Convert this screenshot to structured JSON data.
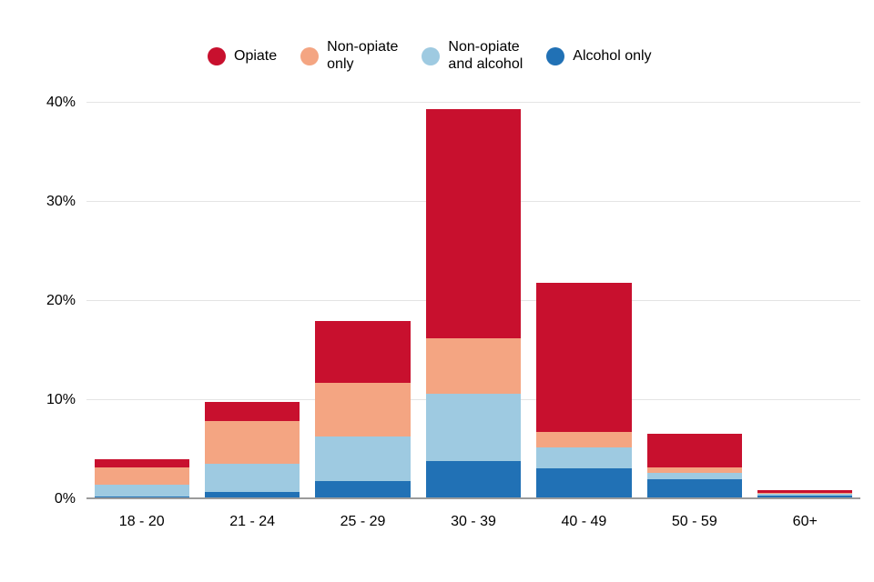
{
  "legend": {
    "items": [
      {
        "label": "Opiate",
        "color": "#c8102e"
      },
      {
        "label": "Non-opiate\nonly",
        "color": "#f4a582"
      },
      {
        "label": "Non-opiate\nand alcohol",
        "color": "#9ecae1"
      },
      {
        "label": "Alcohol only",
        "color": "#2171b5"
      }
    ]
  },
  "chart_data": {
    "type": "bar",
    "stacked": true,
    "title": "",
    "xlabel": "",
    "ylabel": "",
    "categories": [
      "18 - 20",
      "21 - 24",
      "25 - 29",
      "30 - 39",
      "40 - 49",
      "50 - 59",
      "60+"
    ],
    "series": [
      {
        "name": "Alcohol only",
        "color": "#2171b5",
        "values": [
          0.3,
          0.7,
          1.8,
          3.9,
          3.1,
          2.0,
          0.4
        ]
      },
      {
        "name": "Non-opiate and alcohol",
        "color": "#9ecae1",
        "values": [
          1.2,
          2.9,
          4.5,
          6.7,
          2.1,
          0.7,
          0.15
        ]
      },
      {
        "name": "Non-opiate only",
        "color": "#f4a582",
        "values": [
          1.7,
          4.3,
          5.4,
          5.6,
          1.6,
          0.5,
          0.1
        ]
      },
      {
        "name": "Opiate",
        "color": "#c8102e",
        "values": [
          0.8,
          1.9,
          6.3,
          23.2,
          15.0,
          3.4,
          0.3
        ]
      }
    ],
    "stack_order_bottom_to_top": [
      "Alcohol only",
      "Non-opiate and alcohol",
      "Non-opiate only",
      "Opiate"
    ],
    "ylim": [
      0,
      40
    ],
    "yticks": [
      0,
      10,
      20,
      30,
      40
    ],
    "ytick_labels": [
      "0%",
      "10%",
      "20%",
      "30%",
      "40%"
    ],
    "grid": "horizontal",
    "legend_position": "top"
  }
}
